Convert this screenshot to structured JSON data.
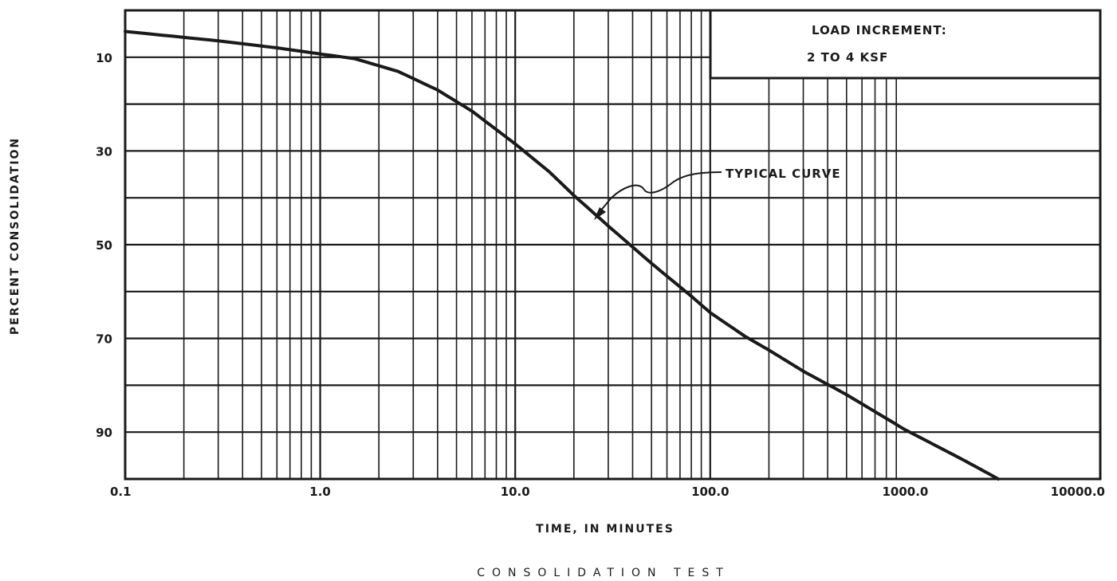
{
  "chart_data": {
    "type": "line",
    "title": "CONSOLIDATION TEST",
    "xlabel": "TIME, IN MINUTES",
    "ylabel": "PERCENT CONSOLIDATION",
    "x_scale": "log",
    "xlim": [
      0.1,
      10000
    ],
    "ylim": [
      0,
      100
    ],
    "y_inverted": true,
    "grid": true,
    "x_tick_labels": [
      "0.1",
      "1.0",
      "10.0",
      "100.0",
      "1000.0",
      "10000.0"
    ],
    "x_tick_values": [
      0.1,
      1,
      10,
      100,
      1000,
      10000
    ],
    "y_tick_labels": [
      "10",
      "30",
      "50",
      "70",
      "90"
    ],
    "y_tick_values": [
      10,
      30,
      50,
      70,
      90
    ],
    "legend_box": {
      "line1": "LOAD INCREMENT:",
      "line2": "2 TO 4 KSF",
      "placement": "top-right"
    },
    "annotation": "TYPICAL CURVE",
    "series": [
      {
        "x": [
          0.1,
          0.3,
          0.6,
          1.0,
          1.5,
          2.5,
          4.0,
          6.0,
          10.0,
          15.0,
          20.0,
          30.0,
          50.0,
          80.0,
          100.0,
          150.0,
          200.0,
          300.0,
          500.0,
          1000.0,
          2000.0,
          3000.0
        ],
        "y": [
          4.5,
          6.5,
          8.0,
          9.3,
          10.3,
          13.0,
          17.0,
          21.5,
          28.5,
          34.5,
          39.5,
          46.0,
          54.0,
          61.0,
          64.5,
          69.5,
          72.5,
          77.0,
          82.0,
          89.5,
          96.0,
          100.0
        ]
      }
    ]
  }
}
